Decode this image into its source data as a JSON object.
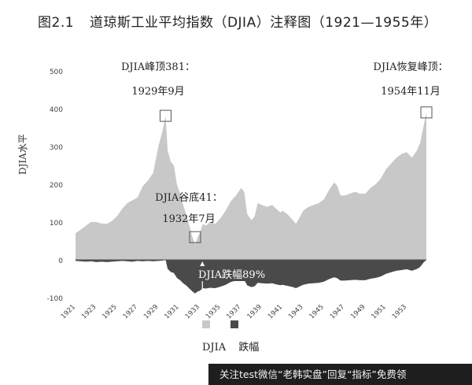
{
  "header": {
    "figure_number": "图2.1",
    "title": "道琼斯工业平均指数（DJIA）注释图（1921—1955年）"
  },
  "annotations": {
    "peak_1929_line1": "DJIA峰顶381：",
    "peak_1929_line2": "1929年9月",
    "peak_1954_line1": "DJIA恢复峰顶：",
    "peak_1954_line2": "1954年11月",
    "trough_line1": "DJIA谷底41：",
    "trough_line2": "1932年7月",
    "drawdown_label": "DJIA跌幅89%"
  },
  "legend": {
    "label1": "DJIA",
    "label2": "跌幅",
    "color1": "#c8c8c8",
    "color2": "#4a4a4a"
  },
  "footer": {
    "text": "关注test微信“老韩实盘”回复“指标”免费领"
  },
  "chart_data": {
    "type": "area",
    "title": "道琼斯工业平均指数（DJIA）注释图（1921—1955年）",
    "ylabel": "DJIA水平",
    "xlabel": "",
    "ylim": [
      -100,
      500
    ],
    "xlim": [
      1921,
      1954.9
    ],
    "y_ticks": [
      -100,
      0,
      100,
      200,
      300,
      400,
      500
    ],
    "x_ticks": [
      "1921",
      "1923",
      "1925",
      "1927",
      "1929",
      "1931",
      "1933",
      "1935",
      "1937",
      "1939",
      "1941",
      "1943",
      "1945",
      "1947",
      "1949",
      "1951",
      "1953"
    ],
    "grid": false,
    "legend_position": "bottom",
    "series": [
      {
        "name": "DJIA",
        "color": "#c8c8c8",
        "x": [
          1921,
          1921.5,
          1922,
          1922.5,
          1923,
          1923.5,
          1924,
          1924.5,
          1925,
          1925.5,
          1926,
          1926.5,
          1927,
          1927.5,
          1928,
          1928.5,
          1929,
          1929.4,
          1929.7,
          1929.9,
          1930.2,
          1930.5,
          1930.8,
          1931.1,
          1931.4,
          1931.7,
          1932,
          1932.3,
          1932.55,
          1932.8,
          1933,
          1933.3,
          1933.6,
          1934,
          1934.5,
          1935,
          1935.5,
          1936,
          1936.5,
          1937,
          1937.3,
          1937.6,
          1938,
          1938.3,
          1938.6,
          1939,
          1939.5,
          1940,
          1940.4,
          1940.8,
          1941,
          1941.5,
          1942,
          1942.3,
          1942.6,
          1943,
          1943.5,
          1944,
          1944.5,
          1945,
          1945.5,
          1946,
          1946.3,
          1946.6,
          1947,
          1947.5,
          1948,
          1948.5,
          1949,
          1949.5,
          1950,
          1950.5,
          1951,
          1951.5,
          1952,
          1952.5,
          1953,
          1953.5,
          1954,
          1954.3,
          1954.6,
          1954.9
        ],
        "values": [
          70,
          80,
          90,
          100,
          100,
          96,
          95,
          102,
          115,
          135,
          150,
          158,
          165,
          195,
          210,
          230,
          300,
          340,
          381,
          290,
          260,
          250,
          200,
          175,
          145,
          120,
          90,
          60,
          41,
          60,
          70,
          95,
          90,
          100,
          95,
          110,
          130,
          155,
          170,
          190,
          180,
          120,
          105,
          115,
          150,
          145,
          140,
          145,
          135,
          125,
          130,
          120,
          105,
          95,
          110,
          130,
          140,
          145,
          150,
          160,
          185,
          205,
          195,
          170,
          170,
          175,
          180,
          175,
          175,
          190,
          200,
          215,
          240,
          255,
          270,
          280,
          285,
          270,
          290,
          310,
          350,
          390
        ]
      },
      {
        "name": "跌幅",
        "color": "#4a4a4a",
        "x": [
          1921,
          1921.5,
          1922,
          1922.5,
          1923,
          1923.5,
          1924,
          1924.5,
          1925,
          1925.5,
          1926,
          1926.5,
          1927,
          1927.5,
          1928,
          1928.5,
          1929,
          1929.4,
          1929.7,
          1929.9,
          1930.2,
          1930.5,
          1930.8,
          1931.1,
          1931.4,
          1931.7,
          1932,
          1932.3,
          1932.55,
          1932.8,
          1933,
          1933.3,
          1933.6,
          1934,
          1934.5,
          1935,
          1935.5,
          1936,
          1936.5,
          1937,
          1937.3,
          1937.6,
          1938,
          1938.3,
          1938.6,
          1939,
          1939.5,
          1940,
          1940.4,
          1940.8,
          1941,
          1941.5,
          1942,
          1942.3,
          1942.6,
          1943,
          1943.5,
          1944,
          1944.5,
          1945,
          1945.5,
          1946,
          1946.3,
          1946.6,
          1947,
          1947.5,
          1948,
          1948.5,
          1949,
          1949.5,
          1950,
          1950.5,
          1951,
          1951.5,
          1952,
          1952.5,
          1953,
          1953.5,
          1954,
          1954.3,
          1954.6,
          1954.9
        ],
        "values": [
          -3,
          -4,
          -5,
          -4,
          -6,
          -5,
          -6,
          -5,
          -4,
          -3,
          -4,
          -5,
          -3,
          -4,
          -3,
          -4,
          -3,
          -2,
          0,
          -24,
          -32,
          -35,
          -48,
          -54,
          -62,
          -68,
          -76,
          -84,
          -89,
          -84,
          -82,
          -75,
          -76,
          -74,
          -75,
          -71,
          -66,
          -59,
          -55,
          -50,
          -53,
          -68,
          -72,
          -70,
          -61,
          -62,
          -63,
          -62,
          -65,
          -67,
          -66,
          -69,
          -72,
          -75,
          -71,
          -66,
          -63,
          -62,
          -61,
          -58,
          -51,
          -46,
          -49,
          -55,
          -55,
          -54,
          -53,
          -54,
          -54,
          -50,
          -48,
          -44,
          -37,
          -33,
          -29,
          -27,
          -25,
          -29,
          -24,
          -19,
          -8,
          0
        ]
      }
    ]
  }
}
